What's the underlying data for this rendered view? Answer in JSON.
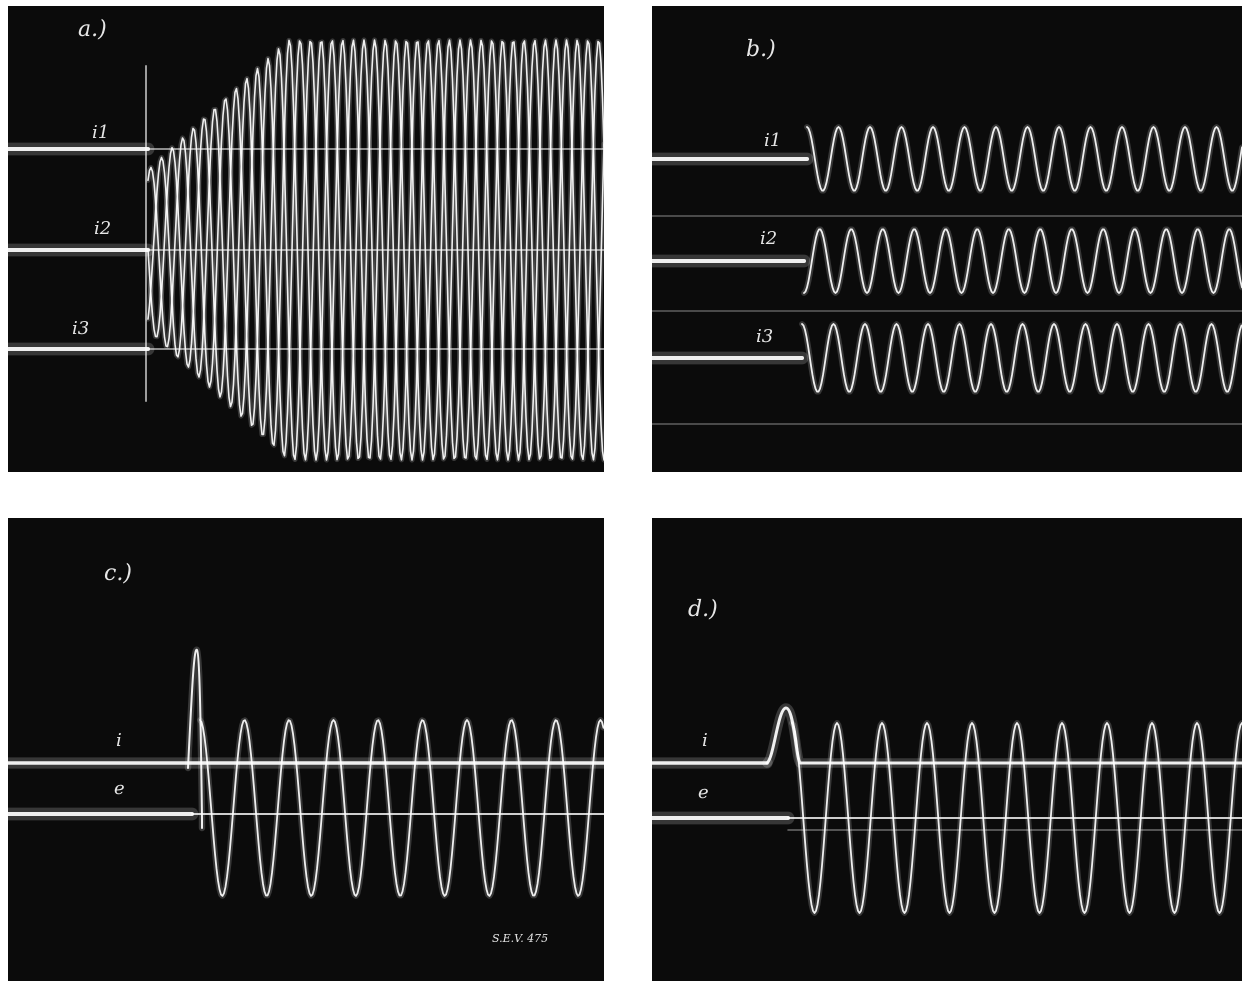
{
  "panels": [
    {
      "label": "a.)",
      "traces": [
        "i1",
        "i2",
        "i3"
      ]
    },
    {
      "label": "b.)",
      "traces": [
        "i1",
        "i2",
        "i3"
      ]
    },
    {
      "label": "c.)",
      "traces": [
        "i",
        "e"
      ],
      "footnote": "S.E.V. 475"
    },
    {
      "label": "d.)",
      "traces": [
        "i",
        "e"
      ]
    }
  ],
  "colors": {
    "background": "#0b0b0b",
    "trace": "#ffffff",
    "page": "#ffffff"
  }
}
